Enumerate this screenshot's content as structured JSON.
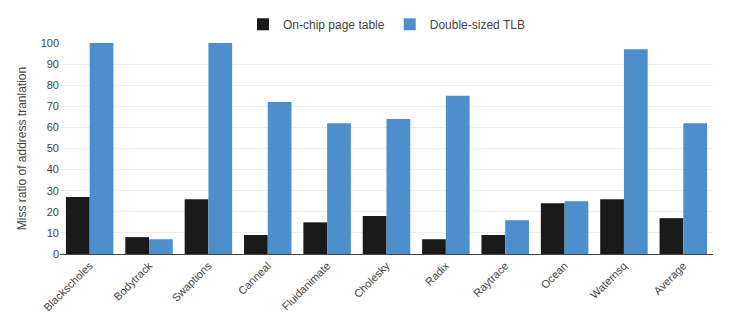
{
  "chart_data": {
    "type": "bar",
    "categories": [
      "Blackscholes",
      "Bodytrack",
      "Swaptions",
      "Canneal",
      "Fluidanimate",
      "Cholesky",
      "Radix",
      "Raytrace",
      "Ocean",
      "Waternsq",
      "Average"
    ],
    "series": [
      {
        "name": "On-chip page table",
        "color": "#1a1a1a",
        "values": [
          27,
          8,
          26,
          9,
          15,
          18,
          7,
          9,
          24,
          26,
          17
        ]
      },
      {
        "name": "Double-sized TLB",
        "color": "#4d8fcc",
        "values": [
          100,
          7,
          100,
          72,
          62,
          64,
          75,
          16,
          25,
          97,
          62
        ]
      }
    ],
    "ylabel": "Miss ratio of address tranlation",
    "ylim": [
      0,
      100
    ],
    "yticks": [
      0,
      10,
      20,
      30,
      40,
      50,
      60,
      70,
      80,
      90,
      100
    ],
    "grid": true,
    "legend": "top"
  }
}
